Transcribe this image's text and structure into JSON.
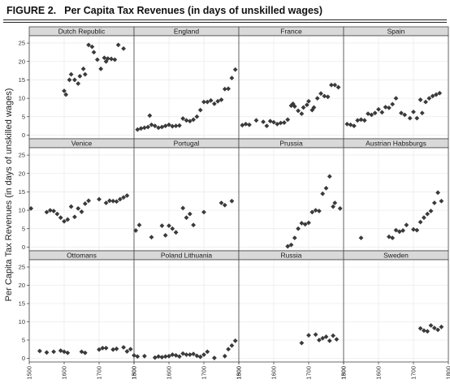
{
  "figure": {
    "label": "FIGURE 2.",
    "title": "Per Capita Tax Revenues (in days of unskilled wages)"
  },
  "chart_data": {
    "type": "scatter",
    "layout": "small multiples 4 x 3",
    "ylabel": "Per Capita Tax Revenues (in days of unskilled wages)",
    "xlabel": "",
    "xlim": [
      1500,
      1800
    ],
    "ylim": [
      -1,
      27
    ],
    "xticks": [
      1500,
      1600,
      1700,
      1800
    ],
    "yticks": [
      0,
      5,
      10,
      15,
      20,
      25
    ],
    "grid": true,
    "marker": "diamond",
    "colors": {
      "point": "#3a3a3a",
      "strip": "#d9d9d9",
      "panel_border": "#444444",
      "grid": "#ebebeb"
    },
    "panels": [
      {
        "name": "Dutch Republic",
        "points": [
          [
            1600,
            12
          ],
          [
            1605,
            11
          ],
          [
            1615,
            15
          ],
          [
            1620,
            16.5
          ],
          [
            1630,
            15
          ],
          [
            1640,
            14
          ],
          [
            1645,
            16
          ],
          [
            1655,
            18
          ],
          [
            1660,
            16.5
          ],
          [
            1670,
            24.5
          ],
          [
            1680,
            24
          ],
          [
            1685,
            22.5
          ],
          [
            1695,
            20.5
          ],
          [
            1705,
            18
          ],
          [
            1715,
            21
          ],
          [
            1720,
            20
          ],
          [
            1725,
            20.8
          ],
          [
            1735,
            20.7
          ],
          [
            1745,
            20.5
          ],
          [
            1755,
            24.5
          ],
          [
            1770,
            23.5
          ]
        ]
      },
      {
        "name": "England",
        "points": [
          [
            1510,
            1.5
          ],
          [
            1520,
            1.8
          ],
          [
            1530,
            2
          ],
          [
            1540,
            2.2
          ],
          [
            1545,
            5.3
          ],
          [
            1550,
            2.8
          ],
          [
            1560,
            2.5
          ],
          [
            1570,
            2
          ],
          [
            1580,
            2.2
          ],
          [
            1590,
            2.5
          ],
          [
            1600,
            2.8
          ],
          [
            1610,
            2.4
          ],
          [
            1620,
            2.5
          ],
          [
            1630,
            2.6
          ],
          [
            1640,
            4.5
          ],
          [
            1650,
            4
          ],
          [
            1660,
            3.8
          ],
          [
            1670,
            4.2
          ],
          [
            1680,
            5
          ],
          [
            1690,
            6.8
          ],
          [
            1700,
            9
          ],
          [
            1710,
            9
          ],
          [
            1720,
            9.4
          ],
          [
            1730,
            8.5
          ],
          [
            1740,
            9.2
          ],
          [
            1750,
            9.6
          ],
          [
            1760,
            12.5
          ],
          [
            1770,
            12.6
          ],
          [
            1780,
            15.5
          ],
          [
            1790,
            17.8
          ]
        ]
      },
      {
        "name": "France",
        "points": [
          [
            1510,
            2.7
          ],
          [
            1520,
            3
          ],
          [
            1530,
            2.8
          ],
          [
            1550,
            4
          ],
          [
            1570,
            3.6
          ],
          [
            1580,
            2.5
          ],
          [
            1590,
            3.8
          ],
          [
            1600,
            3.5
          ],
          [
            1610,
            3
          ],
          [
            1620,
            3.3
          ],
          [
            1630,
            3.4
          ],
          [
            1640,
            4.2
          ],
          [
            1650,
            8
          ],
          [
            1655,
            8.5
          ],
          [
            1660,
            7.8
          ],
          [
            1670,
            6.6
          ],
          [
            1680,
            5.8
          ],
          [
            1685,
            7.5
          ],
          [
            1695,
            8.2
          ],
          [
            1700,
            9.2
          ],
          [
            1710,
            6.8
          ],
          [
            1715,
            7.5
          ],
          [
            1725,
            10
          ],
          [
            1735,
            11.3
          ],
          [
            1745,
            10.6
          ],
          [
            1755,
            10.4
          ],
          [
            1765,
            13.6
          ],
          [
            1775,
            13.6
          ],
          [
            1785,
            13
          ]
        ]
      },
      {
        "name": "Spain",
        "points": [
          [
            1510,
            3
          ],
          [
            1520,
            2.8
          ],
          [
            1530,
            2.5
          ],
          [
            1540,
            4
          ],
          [
            1550,
            4.2
          ],
          [
            1560,
            4
          ],
          [
            1570,
            5.8
          ],
          [
            1580,
            5.5
          ],
          [
            1590,
            6
          ],
          [
            1600,
            7
          ],
          [
            1610,
            6.2
          ],
          [
            1620,
            7.6
          ],
          [
            1630,
            7.4
          ],
          [
            1640,
            8.4
          ],
          [
            1650,
            10
          ],
          [
            1665,
            6
          ],
          [
            1675,
            5.5
          ],
          [
            1690,
            4.6
          ],
          [
            1700,
            6.3
          ],
          [
            1710,
            4.6
          ],
          [
            1720,
            9.6
          ],
          [
            1725,
            6
          ],
          [
            1735,
            9
          ],
          [
            1745,
            10
          ],
          [
            1755,
            10.6
          ],
          [
            1765,
            11
          ],
          [
            1775,
            11.4
          ]
        ]
      },
      {
        "name": "Venice",
        "points": [
          [
            1505,
            10.5
          ],
          [
            1550,
            9.5
          ],
          [
            1560,
            10
          ],
          [
            1570,
            9.8
          ],
          [
            1580,
            9
          ],
          [
            1590,
            8
          ],
          [
            1600,
            7
          ],
          [
            1610,
            7.5
          ],
          [
            1620,
            11
          ],
          [
            1630,
            8.2
          ],
          [
            1640,
            10.5
          ],
          [
            1650,
            9.6
          ],
          [
            1660,
            11.8
          ],
          [
            1670,
            12.6
          ],
          [
            1700,
            13
          ],
          [
            1720,
            12
          ],
          [
            1730,
            12.6
          ],
          [
            1740,
            12.5
          ],
          [
            1750,
            12.4
          ],
          [
            1760,
            13
          ],
          [
            1770,
            13.5
          ],
          [
            1780,
            14
          ]
        ]
      },
      {
        "name": "Portugal",
        "points": [
          [
            1505,
            4.5
          ],
          [
            1515,
            6
          ],
          [
            1550,
            2.7
          ],
          [
            1580,
            5.8
          ],
          [
            1590,
            3.2
          ],
          [
            1600,
            5.8
          ],
          [
            1610,
            5
          ],
          [
            1620,
            4
          ],
          [
            1640,
            10.6
          ],
          [
            1650,
            8
          ],
          [
            1660,
            9
          ],
          [
            1670,
            6
          ],
          [
            1700,
            9.5
          ],
          [
            1750,
            12
          ],
          [
            1760,
            11.4
          ],
          [
            1780,
            12.5
          ]
        ]
      },
      {
        "name": "Prussia",
        "points": [
          [
            1640,
            0.2
          ],
          [
            1650,
            0.6
          ],
          [
            1660,
            2.5
          ],
          [
            1670,
            5
          ],
          [
            1680,
            6.5
          ],
          [
            1690,
            6.2
          ],
          [
            1700,
            6.6
          ],
          [
            1710,
            9.5
          ],
          [
            1720,
            10
          ],
          [
            1730,
            9.8
          ],
          [
            1740,
            14.5
          ],
          [
            1750,
            16
          ],
          [
            1760,
            19.2
          ],
          [
            1770,
            11
          ],
          [
            1775,
            12
          ],
          [
            1790,
            10.5
          ]
        ]
      },
      {
        "name": "Austrian Habsburgs",
        "points": [
          [
            1550,
            2.5
          ],
          [
            1630,
            2.8
          ],
          [
            1640,
            2.5
          ],
          [
            1650,
            4.6
          ],
          [
            1660,
            4.2
          ],
          [
            1670,
            4.5
          ],
          [
            1680,
            6
          ],
          [
            1700,
            4.8
          ],
          [
            1710,
            4.6
          ],
          [
            1720,
            6.8
          ],
          [
            1730,
            8
          ],
          [
            1740,
            9
          ],
          [
            1750,
            9.8
          ],
          [
            1760,
            12
          ],
          [
            1770,
            14.8
          ],
          [
            1780,
            12.5
          ]
        ]
      },
      {
        "name": "Ottomans",
        "points": [
          [
            1530,
            2
          ],
          [
            1550,
            1.6
          ],
          [
            1570,
            1.8
          ],
          [
            1590,
            2.1
          ],
          [
            1600,
            1.8
          ],
          [
            1610,
            1.5
          ],
          [
            1650,
            1.8
          ],
          [
            1660,
            1.5
          ],
          [
            1700,
            2.4
          ],
          [
            1710,
            2.8
          ],
          [
            1720,
            2.8
          ],
          [
            1740,
            2.4
          ],
          [
            1750,
            2.6
          ],
          [
            1770,
            3
          ],
          [
            1780,
            1.9
          ],
          [
            1790,
            2.5
          ]
        ]
      },
      {
        "name": "Poland Lithuania",
        "points": [
          [
            1500,
            0.8
          ],
          [
            1510,
            0.5
          ],
          [
            1530,
            0.6
          ],
          [
            1560,
            0.2
          ],
          [
            1570,
            0.5
          ],
          [
            1580,
            0.3
          ],
          [
            1590,
            0.5
          ],
          [
            1600,
            0.6
          ],
          [
            1610,
            1
          ],
          [
            1620,
            0.8
          ],
          [
            1630,
            0.5
          ],
          [
            1640,
            1.3
          ],
          [
            1650,
            1
          ],
          [
            1660,
            1
          ],
          [
            1670,
            1.2
          ],
          [
            1680,
            0.7
          ],
          [
            1690,
            0.4
          ],
          [
            1700,
            1
          ],
          [
            1710,
            1.8
          ],
          [
            1730,
            0.1
          ],
          [
            1760,
            0.6
          ],
          [
            1770,
            2.5
          ],
          [
            1780,
            3.5
          ],
          [
            1790,
            4.8
          ]
        ]
      },
      {
        "name": "Russia",
        "points": [
          [
            1680,
            4.2
          ],
          [
            1700,
            6.3
          ],
          [
            1720,
            6.5
          ],
          [
            1730,
            5
          ],
          [
            1740,
            5.5
          ],
          [
            1750,
            5.9
          ],
          [
            1760,
            4.8
          ],
          [
            1770,
            6.2
          ],
          [
            1780,
            5.2
          ]
        ]
      },
      {
        "name": "Sweden",
        "points": [
          [
            1720,
            8.2
          ],
          [
            1730,
            7.6
          ],
          [
            1740,
            7.4
          ],
          [
            1750,
            9
          ],
          [
            1760,
            8.3
          ],
          [
            1770,
            7.8
          ],
          [
            1780,
            8.6
          ]
        ]
      }
    ]
  }
}
